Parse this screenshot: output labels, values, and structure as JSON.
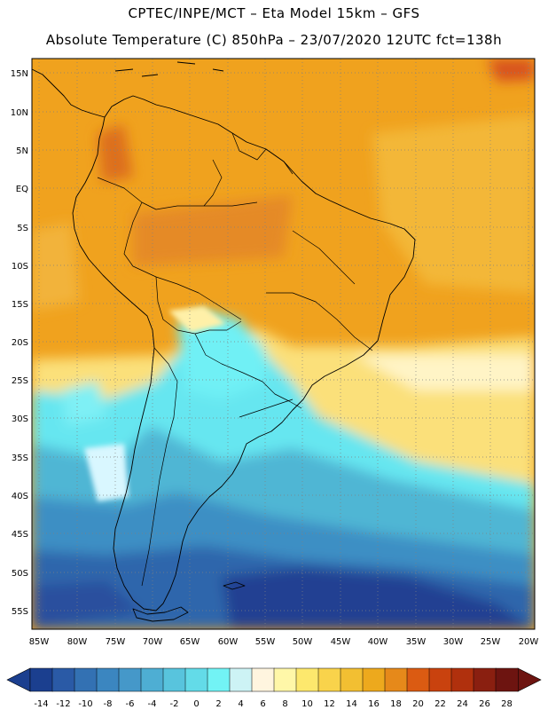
{
  "header": {
    "line1": "CPTEC/INPE/MCT –  Eta Model 15km – GFS",
    "line2": "Absolute Temperature (C) 850hPa – 23/07/2020 12UTC fct=138h"
  },
  "map": {
    "lat_labels": [
      "15N",
      "10N",
      "5N",
      "EQ",
      "5S",
      "10S",
      "15S",
      "20S",
      "25S",
      "30S",
      "35S",
      "40S",
      "45S",
      "50S",
      "55S"
    ],
    "lon_labels": [
      "85W",
      "80W",
      "75W",
      "70W",
      "65W",
      "60W",
      "55W",
      "50W",
      "45W",
      "40W",
      "35W",
      "30W",
      "25W",
      "20W"
    ]
  },
  "colorbar": {
    "labels": [
      "-14",
      "-12",
      "-10",
      "-8",
      "-6",
      "-4",
      "-2",
      "0",
      "2",
      "4",
      "6",
      "8",
      "10",
      "12",
      "14",
      "16",
      "18",
      "20",
      "22",
      "24",
      "26",
      "28"
    ],
    "colors": [
      "#1b3f8f",
      "#2a5aa6",
      "#3371b3",
      "#3b86c0",
      "#4598c9",
      "#4eaed3",
      "#58c4dd",
      "#63dbe8",
      "#72f3f5",
      "#cdf3f5",
      "#fff5df",
      "#fff7a8",
      "#fde86d",
      "#f9d34b",
      "#f2bf32",
      "#eda91d",
      "#e6891a",
      "#db5b12",
      "#c9420e",
      "#b0300d",
      "#8a1f10",
      "#6d1410"
    ]
  },
  "colors": {
    "warm": "#f0a21e",
    "hot": "#e07a22",
    "cold_deep": "#2a4a9a",
    "cyan": "#66e6f0",
    "yellow": "#fde887",
    "coast": "#000000"
  }
}
